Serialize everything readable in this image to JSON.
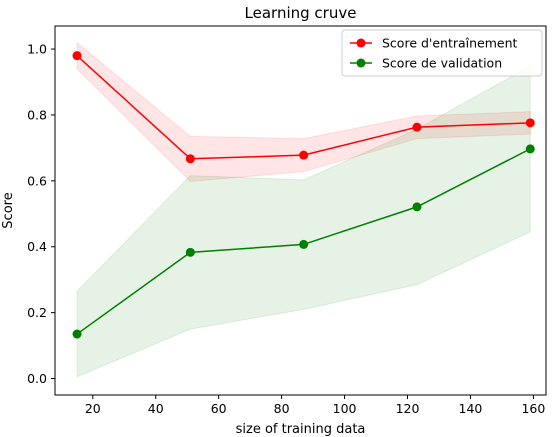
{
  "chart_data": {
    "type": "line",
    "title": "Learning cruve",
    "xlabel": "size of training data",
    "ylabel": "Score",
    "xlim": [
      8,
      164
    ],
    "ylim": [
      -0.05,
      1.07
    ],
    "xticks": [
      20,
      40,
      60,
      80,
      100,
      120,
      140,
      160
    ],
    "yticks": [
      0.0,
      0.2,
      0.4,
      0.6,
      0.8,
      1.0
    ],
    "xtick_labels": [
      "20",
      "40",
      "60",
      "80",
      "100",
      "120",
      "140",
      "160"
    ],
    "ytick_labels": [
      "0.0",
      "0.2",
      "0.4",
      "0.6",
      "0.8",
      "1.0"
    ],
    "x": [
      15,
      51,
      87,
      123,
      159
    ],
    "legend_position": "top-right",
    "grid": false,
    "series": [
      {
        "name": "Score d'entraînement",
        "color": "#ff0000",
        "values": [
          0.98,
          0.667,
          0.678,
          0.763,
          0.776
        ],
        "band_lower": [
          0.94,
          0.598,
          0.628,
          0.728,
          0.742
        ],
        "band_upper": [
          1.02,
          0.735,
          0.728,
          0.797,
          0.81
        ]
      },
      {
        "name": "Score de validation",
        "color": "#008000",
        "values": [
          0.135,
          0.383,
          0.407,
          0.521,
          0.697
        ],
        "band_lower": [
          0.005,
          0.15,
          0.21,
          0.285,
          0.445
        ],
        "band_upper": [
          0.265,
          0.616,
          0.603,
          0.757,
          0.948
        ]
      }
    ]
  }
}
